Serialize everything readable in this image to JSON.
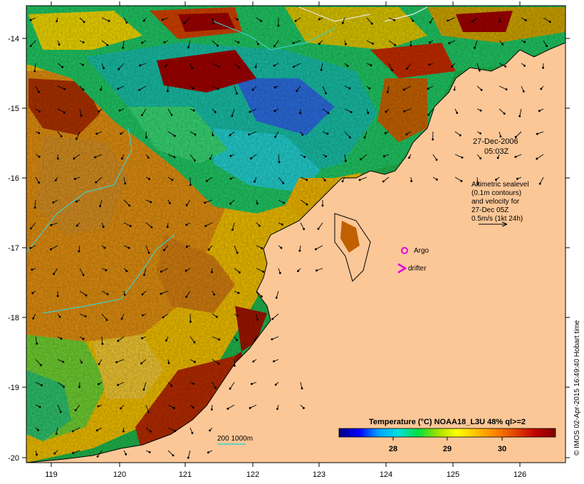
{
  "map": {
    "lon_ticks": [
      "119",
      "120",
      "121",
      "122",
      "123",
      "124",
      "125",
      "126"
    ],
    "lat_ticks": [
      "-14",
      "-15",
      "-16",
      "-17",
      "-18",
      "-19",
      "-20"
    ],
    "colors": {
      "land": "#fcc797",
      "sst_warm": "#c04000",
      "sst_hot": "#9b0000",
      "sst_mid": "#e8c400",
      "sst_cool": "#22c02a",
      "sst_cold": "#1b5fd0",
      "argo": "#e000e0",
      "drifter": "#e000e0",
      "contour": "#40d0c8"
    }
  },
  "annotations": {
    "date": "27-Dec-2006",
    "time": "05:03Z",
    "legend_lines": [
      "Altimetric sealevel",
      "(0.1m contours)",
      "and velocity for",
      "27-Dec 05Z",
      "0.5m/s (1kt 24h)"
    ],
    "argo_label": "Argo",
    "drifter_label": "drifter",
    "isobath_label": "200  1000m"
  },
  "colorbar": {
    "title": "Temperature (°C) NOAA18_L3U 48% ql>=2",
    "ticks": [
      "28",
      "29",
      "30"
    ],
    "stops": [
      "#000080",
      "#0000ff",
      "#00a0ff",
      "#00e0e0",
      "#00e040",
      "#a0e000",
      "#ffff00",
      "#ffc000",
      "#ff8000",
      "#e04000",
      "#c00000",
      "#800000"
    ]
  },
  "credit": "© IMOS 02-Apr-2015 16:49:40 Hobart time"
}
